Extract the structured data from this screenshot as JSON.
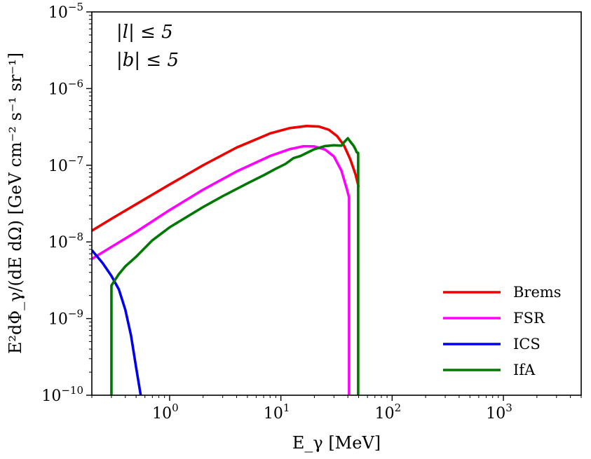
{
  "chart_data": {
    "type": "line",
    "title": "",
    "xlabel": "E_γ [MeV]",
    "ylabel": "E²dΦ_γ/(dE dΩ) [GeV cm⁻² s⁻¹ sr⁻¹]",
    "xscale": "log",
    "yscale": "log",
    "xlim": [
      0.2,
      5000
    ],
    "ylim": [
      1e-10,
      1e-05
    ],
    "xticks": [
      {
        "value": 1,
        "base": "10",
        "exp": "0"
      },
      {
        "value": 10,
        "base": "10",
        "exp": "1"
      },
      {
        "value": 100,
        "base": "10",
        "exp": "2"
      },
      {
        "value": 1000,
        "base": "10",
        "exp": "3"
      }
    ],
    "yticks": [
      {
        "value": 1e-10,
        "base": "10",
        "exp": "−10"
      },
      {
        "value": 1e-09,
        "base": "10",
        "exp": "−9"
      },
      {
        "value": 1e-08,
        "base": "10",
        "exp": "−8"
      },
      {
        "value": 1e-07,
        "base": "10",
        "exp": "−7"
      },
      {
        "value": 1e-06,
        "base": "10",
        "exp": "−6"
      },
      {
        "value": 1e-05,
        "base": "10",
        "exp": "−5"
      }
    ],
    "annotations": [
      "|l| ≤ 5",
      "|b| ≤ 5"
    ],
    "legend_position": "bottom-right",
    "series": [
      {
        "name": "Brems",
        "color": "#ee0000",
        "x": [
          0.2,
          0.3,
          0.5,
          1,
          2,
          4,
          8,
          12,
          17,
          22,
          27,
          32,
          37,
          42,
          47,
          50
        ],
        "y": [
          1.4e-08,
          2e-08,
          3.1e-08,
          5.6e-08,
          1e-07,
          1.7e-07,
          2.6e-07,
          3.05e-07,
          3.25e-07,
          3.2e-07,
          2.9e-07,
          2.4e-07,
          1.8e-07,
          1.2e-07,
          7.5e-08,
          5.2e-08
        ]
      },
      {
        "name": "FSR",
        "color": "#ff00ff",
        "x": [
          0.2,
          0.3,
          0.5,
          1,
          2,
          4,
          8,
          12,
          16,
          20,
          25,
          30,
          35,
          39,
          41,
          41.01
        ],
        "y": [
          6e-09,
          8.6e-09,
          1.35e-08,
          2.6e-08,
          4.8e-08,
          8.3e-08,
          1.32e-07,
          1.62e-07,
          1.77e-07,
          1.76e-07,
          1.6e-07,
          1.3e-07,
          8.5e-08,
          5e-08,
          3.8e-08,
          1e-11
        ]
      },
      {
        "name": "ICS",
        "color": "#0000ee",
        "x": [
          0.2,
          0.25,
          0.3,
          0.35,
          0.4,
          0.45,
          0.5,
          0.55,
          0.6
        ],
        "y": [
          7.8e-09,
          5.3e-09,
          3.6e-09,
          2.4e-09,
          1.3e-09,
          6e-10,
          2.3e-10,
          1e-10,
          5e-11
        ]
      },
      {
        "name": "IfA",
        "color": "#007700",
        "x": [
          0.3,
          0.3,
          0.35,
          0.4,
          0.5,
          0.7,
          1,
          2,
          3,
          5,
          7,
          9,
          11,
          13,
          15,
          20,
          25,
          30,
          35,
          37,
          40,
          43,
          45,
          47,
          48,
          49,
          49.5,
          49.51
        ],
        "y": [
          1e-11,
          2.7e-09,
          3.8e-09,
          4.8e-09,
          6.4e-09,
          1.05e-08,
          1.55e-08,
          2.85e-08,
          3.95e-08,
          5.8e-08,
          7.4e-08,
          9e-08,
          1.04e-07,
          1.24e-07,
          1.32e-07,
          1.62e-07,
          1.78e-07,
          1.82e-07,
          1.8e-07,
          2e-07,
          2.25e-07,
          1.95e-07,
          1.8e-07,
          1.6e-07,
          1.48e-07,
          1.45e-07,
          1.45e-07,
          1e-11
        ]
      }
    ]
  }
}
